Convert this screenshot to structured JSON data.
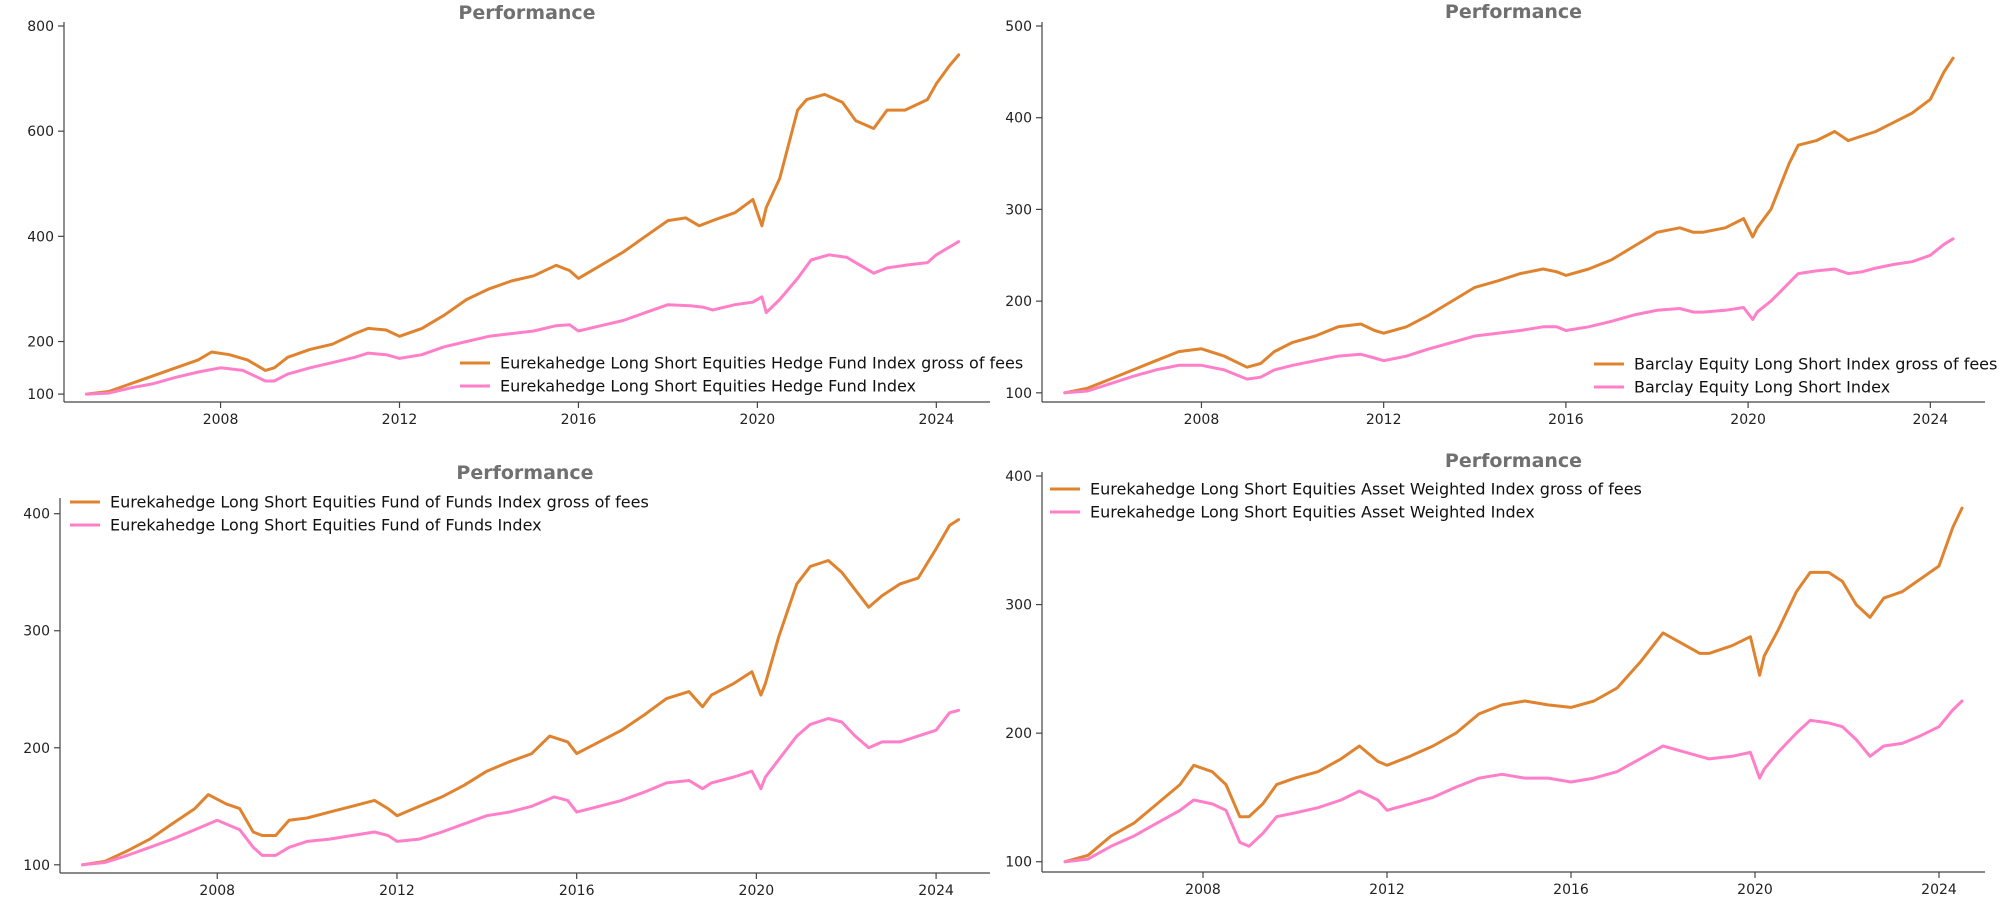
{
  "chart_data": [
    {
      "type": "line",
      "title": "Performance",
      "xlabel": "",
      "ylabel": "",
      "xlim": [
        2004.5,
        2025.2
      ],
      "ylim": [
        85,
        800
      ],
      "yticks": [
        100,
        200,
        400,
        600,
        800
      ],
      "xticks": [
        2008,
        2012,
        2016,
        2020,
        2024
      ],
      "legend_position": "bottom-right",
      "grid": false,
      "series": [
        {
          "name": "Eurekahedge Long Short Equities Hedge Fund Index gross of fees",
          "color": "#e0832f",
          "x": [
            2005.0,
            2005.5,
            2006.0,
            2006.5,
            2007.0,
            2007.5,
            2007.8,
            2008.2,
            2008.6,
            2009.0,
            2009.2,
            2009.5,
            2010.0,
            2010.5,
            2011.0,
            2011.3,
            2011.7,
            2012.0,
            2012.5,
            2013.0,
            2013.5,
            2014.0,
            2014.5,
            2015.0,
            2015.5,
            2015.8,
            2016.0,
            2016.5,
            2017.0,
            2017.5,
            2018.0,
            2018.4,
            2018.7,
            2019.0,
            2019.5,
            2019.9,
            2020.1,
            2020.2,
            2020.5,
            2020.9,
            2021.1,
            2021.5,
            2021.9,
            2022.2,
            2022.6,
            2022.9,
            2023.3,
            2023.8,
            2024.0,
            2024.3,
            2024.5
          ],
          "y": [
            100,
            105,
            120,
            135,
            150,
            165,
            180,
            175,
            165,
            145,
            150,
            170,
            185,
            195,
            215,
            225,
            222,
            210,
            225,
            250,
            280,
            300,
            315,
            325,
            345,
            335,
            320,
            345,
            370,
            400,
            430,
            435,
            420,
            430,
            445,
            470,
            420,
            455,
            510,
            640,
            660,
            670,
            655,
            620,
            605,
            640,
            640,
            660,
            690,
            725,
            745
          ]
        },
        {
          "name": "Eurekahedge Long Short Equities Hedge Fund Index",
          "color": "#ff7fc9",
          "x": [
            2005.0,
            2005.5,
            2006.0,
            2006.5,
            2007.0,
            2007.5,
            2008.0,
            2008.5,
            2009.0,
            2009.2,
            2009.5,
            2010.0,
            2010.5,
            2011.0,
            2011.3,
            2011.7,
            2012.0,
            2012.5,
            2013.0,
            2013.5,
            2014.0,
            2014.5,
            2015.0,
            2015.5,
            2015.8,
            2016.0,
            2016.5,
            2017.0,
            2017.5,
            2018.0,
            2018.5,
            2018.8,
            2019.0,
            2019.5,
            2019.9,
            2020.1,
            2020.2,
            2020.5,
            2020.9,
            2021.2,
            2021.6,
            2022.0,
            2022.3,
            2022.6,
            2022.9,
            2023.3,
            2023.8,
            2024.0,
            2024.3,
            2024.5
          ],
          "y": [
            100,
            102,
            112,
            120,
            132,
            142,
            150,
            145,
            125,
            125,
            138,
            150,
            160,
            170,
            178,
            175,
            168,
            175,
            190,
            200,
            210,
            215,
            220,
            230,
            232,
            220,
            230,
            240,
            255,
            270,
            268,
            265,
            260,
            270,
            275,
            285,
            255,
            280,
            320,
            355,
            365,
            360,
            345,
            330,
            340,
            345,
            350,
            365,
            380,
            390
          ]
        }
      ]
    },
    {
      "type": "line",
      "title": "Performance",
      "xlabel": "",
      "ylabel": "",
      "xlim": [
        2004.5,
        2025.2
      ],
      "ylim": [
        90,
        500
      ],
      "yticks": [
        100,
        200,
        300,
        400,
        500
      ],
      "xticks": [
        2008,
        2012,
        2016,
        2020,
        2024
      ],
      "legend_position": "bottom-right",
      "grid": false,
      "series": [
        {
          "name": "Barclay Equity Long Short Index gross of fees",
          "color": "#e0832f",
          "x": [
            2005.0,
            2005.5,
            2006.0,
            2006.5,
            2007.0,
            2007.5,
            2008.0,
            2008.5,
            2009.0,
            2009.3,
            2009.6,
            2010.0,
            2010.5,
            2011.0,
            2011.5,
            2011.8,
            2012.0,
            2012.5,
            2013.0,
            2013.5,
            2014.0,
            2014.5,
            2015.0,
            2015.5,
            2015.8,
            2016.0,
            2016.5,
            2017.0,
            2017.5,
            2018.0,
            2018.5,
            2018.8,
            2019.0,
            2019.5,
            2019.9,
            2020.1,
            2020.2,
            2020.5,
            2020.9,
            2021.1,
            2021.5,
            2021.9,
            2022.2,
            2022.5,
            2022.8,
            2023.2,
            2023.6,
            2024.0,
            2024.3,
            2024.5
          ],
          "y": [
            100,
            105,
            115,
            125,
            135,
            145,
            148,
            140,
            128,
            132,
            145,
            155,
            162,
            172,
            175,
            168,
            165,
            172,
            185,
            200,
            215,
            222,
            230,
            235,
            232,
            228,
            235,
            245,
            260,
            275,
            280,
            275,
            275,
            280,
            290,
            270,
            280,
            300,
            350,
            370,
            375,
            385,
            375,
            380,
            385,
            395,
            405,
            420,
            450,
            465
          ]
        },
        {
          "name": "Barclay Equity Long Short Index",
          "color": "#ff7fc9",
          "x": [
            2005.0,
            2005.5,
            2006.0,
            2006.5,
            2007.0,
            2007.5,
            2008.0,
            2008.5,
            2009.0,
            2009.3,
            2009.6,
            2010.0,
            2010.5,
            2011.0,
            2011.5,
            2011.8,
            2012.0,
            2012.5,
            2013.0,
            2013.5,
            2014.0,
            2014.5,
            2015.0,
            2015.5,
            2015.8,
            2016.0,
            2016.5,
            2017.0,
            2017.5,
            2018.0,
            2018.5,
            2018.8,
            2019.0,
            2019.5,
            2019.9,
            2020.1,
            2020.2,
            2020.5,
            2020.9,
            2021.1,
            2021.5,
            2021.9,
            2022.2,
            2022.5,
            2022.8,
            2023.2,
            2023.6,
            2024.0,
            2024.3,
            2024.5
          ],
          "y": [
            100,
            102,
            110,
            118,
            125,
            130,
            130,
            125,
            115,
            117,
            125,
            130,
            135,
            140,
            142,
            138,
            135,
            140,
            148,
            155,
            162,
            165,
            168,
            172,
            172,
            168,
            172,
            178,
            185,
            190,
            192,
            188,
            188,
            190,
            193,
            180,
            188,
            200,
            220,
            230,
            233,
            235,
            230,
            232,
            236,
            240,
            243,
            250,
            262,
            268
          ]
        }
      ]
    },
    {
      "type": "line",
      "title": "Performance",
      "xlabel": "",
      "ylabel": "",
      "xlim": [
        2004.5,
        2025.2
      ],
      "ylim": [
        93,
        410
      ],
      "yticks": [
        100,
        200,
        300,
        400
      ],
      "xticks": [
        2008,
        2012,
        2016,
        2020,
        2024
      ],
      "legend_position": "top-left",
      "grid": false,
      "series": [
        {
          "name": "Eurekahedge Long Short Equities Fund of Funds Index gross of fees",
          "color": "#e0832f",
          "x": [
            2005.0,
            2005.5,
            2006.0,
            2006.5,
            2007.0,
            2007.5,
            2007.8,
            2008.2,
            2008.5,
            2008.8,
            2009.0,
            2009.3,
            2009.6,
            2010.0,
            2010.5,
            2011.0,
            2011.5,
            2011.8,
            2012.0,
            2012.5,
            2013.0,
            2013.5,
            2014.0,
            2014.5,
            2015.0,
            2015.4,
            2015.8,
            2016.0,
            2016.5,
            2017.0,
            2017.5,
            2018.0,
            2018.5,
            2018.8,
            2019.0,
            2019.5,
            2019.9,
            2020.1,
            2020.2,
            2020.5,
            2020.9,
            2021.2,
            2021.6,
            2021.9,
            2022.2,
            2022.5,
            2022.8,
            2023.2,
            2023.6,
            2024.0,
            2024.3,
            2024.5
          ],
          "y": [
            100,
            103,
            112,
            122,
            135,
            148,
            160,
            152,
            148,
            128,
            125,
            125,
            138,
            140,
            145,
            150,
            155,
            148,
            142,
            150,
            158,
            168,
            180,
            188,
            195,
            210,
            205,
            195,
            205,
            215,
            228,
            242,
            248,
            235,
            245,
            255,
            265,
            245,
            255,
            295,
            340,
            355,
            360,
            350,
            335,
            320,
            330,
            340,
            345,
            370,
            390,
            395
          ]
        },
        {
          "name": "Eurekahedge Long Short Equities Fund of Funds Index",
          "color": "#ff7fc9",
          "x": [
            2005.0,
            2005.5,
            2006.0,
            2006.5,
            2007.0,
            2007.5,
            2008.0,
            2008.5,
            2008.8,
            2009.0,
            2009.3,
            2009.6,
            2010.0,
            2010.5,
            2011.0,
            2011.5,
            2011.8,
            2012.0,
            2012.5,
            2013.0,
            2013.5,
            2014.0,
            2014.5,
            2015.0,
            2015.5,
            2015.8,
            2016.0,
            2016.5,
            2017.0,
            2017.5,
            2018.0,
            2018.5,
            2018.8,
            2019.0,
            2019.5,
            2019.9,
            2020.1,
            2020.2,
            2020.5,
            2020.9,
            2021.2,
            2021.6,
            2021.9,
            2022.2,
            2022.5,
            2022.8,
            2023.2,
            2023.6,
            2024.0,
            2024.3,
            2024.5
          ],
          "y": [
            100,
            102,
            108,
            115,
            122,
            130,
            138,
            130,
            115,
            108,
            108,
            115,
            120,
            122,
            125,
            128,
            125,
            120,
            122,
            128,
            135,
            142,
            145,
            150,
            158,
            155,
            145,
            150,
            155,
            162,
            170,
            172,
            165,
            170,
            175,
            180,
            165,
            175,
            190,
            210,
            220,
            225,
            222,
            210,
            200,
            205,
            205,
            210,
            215,
            230,
            232
          ]
        }
      ]
    },
    {
      "type": "line",
      "title": "Performance",
      "xlabel": "",
      "ylabel": "",
      "xlim": [
        2004.5,
        2025.0
      ],
      "ylim": [
        92,
        400
      ],
      "yticks": [
        100,
        200,
        300,
        400
      ],
      "xticks": [
        2008,
        2012,
        2016,
        2020,
        2024
      ],
      "legend_position": "top-left",
      "grid": false,
      "series": [
        {
          "name": "Eurekahedge Long Short Equities Asset Weighted Index gross of fees",
          "color": "#e0832f",
          "x": [
            2005.0,
            2005.5,
            2006.0,
            2006.5,
            2007.0,
            2007.5,
            2007.8,
            2008.2,
            2008.5,
            2008.8,
            2009.0,
            2009.3,
            2009.6,
            2010.0,
            2010.5,
            2011.0,
            2011.4,
            2011.8,
            2012.0,
            2012.5,
            2013.0,
            2013.5,
            2014.0,
            2014.5,
            2015.0,
            2015.5,
            2016.0,
            2016.5,
            2017.0,
            2017.5,
            2018.0,
            2018.5,
            2018.8,
            2019.0,
            2019.5,
            2019.9,
            2020.1,
            2020.2,
            2020.5,
            2020.9,
            2021.2,
            2021.6,
            2021.9,
            2022.2,
            2022.5,
            2022.8,
            2023.2,
            2023.6,
            2024.0,
            2024.3,
            2024.5
          ],
          "y": [
            100,
            105,
            120,
            130,
            145,
            160,
            175,
            170,
            160,
            135,
            135,
            145,
            160,
            165,
            170,
            180,
            190,
            178,
            175,
            182,
            190,
            200,
            215,
            222,
            225,
            222,
            220,
            225,
            235,
            255,
            278,
            268,
            262,
            262,
            268,
            275,
            245,
            260,
            280,
            310,
            325,
            325,
            318,
            300,
            290,
            305,
            310,
            320,
            330,
            360,
            375
          ]
        },
        {
          "name": "Eurekahedge Long Short Equities Asset Weighted Index",
          "color": "#ff7fc9",
          "x": [
            2005.0,
            2005.5,
            2006.0,
            2006.5,
            2007.0,
            2007.5,
            2007.8,
            2008.2,
            2008.5,
            2008.8,
            2009.0,
            2009.3,
            2009.6,
            2010.0,
            2010.5,
            2011.0,
            2011.4,
            2011.8,
            2012.0,
            2012.5,
            2013.0,
            2013.5,
            2014.0,
            2014.5,
            2015.0,
            2015.5,
            2016.0,
            2016.5,
            2017.0,
            2017.5,
            2018.0,
            2018.5,
            2018.8,
            2019.0,
            2019.5,
            2019.9,
            2020.1,
            2020.2,
            2020.5,
            2020.9,
            2021.2,
            2021.6,
            2021.9,
            2022.2,
            2022.5,
            2022.8,
            2023.2,
            2023.6,
            2024.0,
            2024.3,
            2024.5
          ],
          "y": [
            100,
            102,
            112,
            120,
            130,
            140,
            148,
            145,
            140,
            115,
            112,
            122,
            135,
            138,
            142,
            148,
            155,
            148,
            140,
            145,
            150,
            158,
            165,
            168,
            165,
            165,
            162,
            165,
            170,
            180,
            190,
            185,
            182,
            180,
            182,
            185,
            165,
            172,
            185,
            200,
            210,
            208,
            205,
            195,
            182,
            190,
            192,
            198,
            205,
            218,
            225
          ]
        }
      ]
    }
  ]
}
